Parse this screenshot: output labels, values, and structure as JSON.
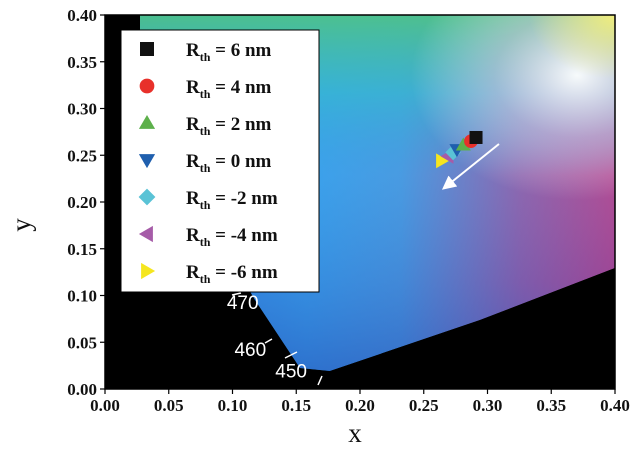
{
  "chart_data": {
    "type": "scatter",
    "title": "",
    "xlabel": "x",
    "ylabel": "y",
    "xlim": [
      0.0,
      0.4
    ],
    "ylim": [
      0.0,
      0.4
    ],
    "x_ticks": [
      "0.00",
      "0.05",
      "0.10",
      "0.15",
      "0.20",
      "0.25",
      "0.30",
      "0.35",
      "0.40"
    ],
    "y_ticks": [
      "0.00",
      "0.05",
      "0.10",
      "0.15",
      "0.20",
      "0.25",
      "0.30",
      "0.35",
      "0.40"
    ],
    "grid": false,
    "legend_position": "top-left",
    "background": "CIE 1931 chromaticity diagram (gamut colors, black outside spectral locus)",
    "spectral_locus_labels": [
      {
        "text": "470",
        "x": 0.108,
        "y": 0.093
      },
      {
        "text": "460",
        "x": 0.114,
        "y": 0.043
      },
      {
        "text": "450",
        "x": 0.146,
        "y": 0.02
      }
    ],
    "series": [
      {
        "name": "R_th = 6 nm",
        "label_main": "R",
        "label_sub": "th",
        "label_rest": " = 6 nm",
        "marker": "square",
        "color": "#111111",
        "x": 0.291,
        "y": 0.269
      },
      {
        "name": "R_th = 4 nm",
        "label_main": "R",
        "label_sub": "th",
        "label_rest": " = 4 nm",
        "marker": "circle",
        "color": "#e8302a",
        "x": 0.287,
        "y": 0.265
      },
      {
        "name": "R_th = 2 nm",
        "label_main": "R",
        "label_sub": "th",
        "label_rest": " = 2 nm",
        "marker": "triangle-up",
        "color": "#5db04b",
        "x": 0.281,
        "y": 0.261
      },
      {
        "name": "R_th = 0 nm",
        "label_main": "R",
        "label_sub": "th",
        "label_rest": " = 0 nm",
        "marker": "triangle-down",
        "color": "#1f5fae",
        "x": 0.276,
        "y": 0.256
      },
      {
        "name": "R_th = -2 nm",
        "label_main": "R",
        "label_sub": "th",
        "label_rest": " = -2 nm",
        "marker": "diamond",
        "color": "#5ac3d6",
        "x": 0.273,
        "y": 0.253
      },
      {
        "name": "R_th = -4 nm",
        "label_main": "R",
        "label_sub": "th",
        "label_rest": " = -4 nm",
        "marker": "triangle-left",
        "color": "#a65ca8",
        "x": 0.269,
        "y": 0.249
      },
      {
        "name": "R_th = -6 nm",
        "label_main": "R",
        "label_sub": "th",
        "label_rest": " = -6 nm",
        "marker": "triangle-right",
        "color": "#f5e61f",
        "x": 0.264,
        "y": 0.244
      }
    ],
    "annotations": [
      {
        "type": "arrow",
        "color": "#ffffff",
        "from": [
          0.309,
          0.262
        ],
        "to": [
          0.266,
          0.215
        ]
      }
    ]
  }
}
